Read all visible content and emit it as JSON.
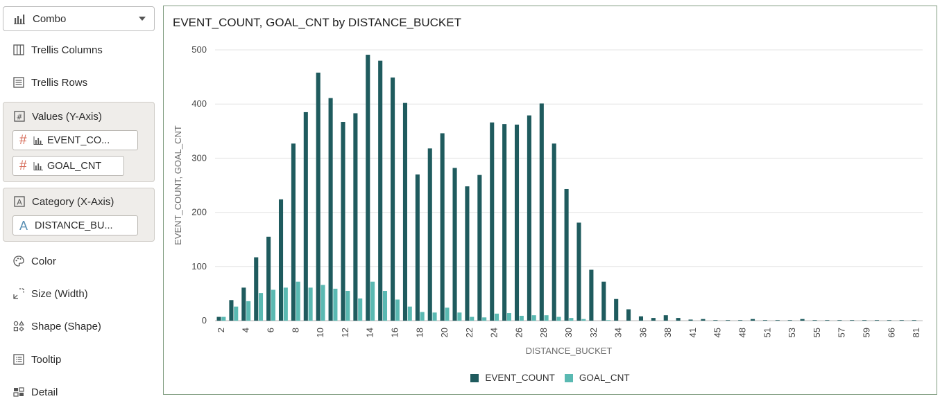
{
  "panel": {
    "chart_type": {
      "label": "Combo",
      "icon": "combo-chart-icon"
    },
    "trellis_columns": {
      "label": "Trellis Columns",
      "icon": "trellis-columns-icon"
    },
    "trellis_rows": {
      "label": "Trellis Rows",
      "icon": "trellis-rows-icon"
    },
    "values_group": {
      "label": "Values (Y-Axis)",
      "icon": "values-axis-icon",
      "items": [
        {
          "label": "EVENT_CO...",
          "type_icon": "number-icon",
          "viz_icon": "bar-chart-icon"
        },
        {
          "label": "GOAL_CNT",
          "type_icon": "number-icon",
          "viz_icon": "bar-chart-icon"
        }
      ]
    },
    "category_group": {
      "label": "Category (X-Axis)",
      "icon": "category-axis-icon",
      "items": [
        {
          "label": "DISTANCE_BU...",
          "type_icon": "attribute-icon"
        }
      ]
    },
    "color": {
      "label": "Color",
      "icon": "palette-icon"
    },
    "size": {
      "label": "Size (Width)",
      "icon": "size-icon"
    },
    "shape": {
      "label": "Shape (Shape)",
      "icon": "shape-icon"
    },
    "tooltip": {
      "label": "Tooltip",
      "icon": "tooltip-icon"
    },
    "detail": {
      "label": "Detail",
      "icon": "detail-icon"
    }
  },
  "colors": {
    "event_count": "#1f5b5e",
    "goal_cnt": "#5ab9b2",
    "grid": "#e4e4e4",
    "border": "#7d9a7d"
  },
  "chart_data": {
    "type": "bar",
    "title": "EVENT_COUNT, GOAL_CNT by DISTANCE_BUCKET",
    "xlabel": "DISTANCE_BUCKET",
    "ylabel": "EVENT_COUNT, GOAL_CNT",
    "ylim": [
      0,
      500
    ],
    "yticks": [
      0,
      100,
      200,
      300,
      400,
      500
    ],
    "grid": true,
    "legend_position": "bottom",
    "categories": [
      "2",
      "3",
      "4",
      "5",
      "6",
      "7",
      "8",
      "9",
      "10",
      "11",
      "12",
      "13",
      "14",
      "15",
      "16",
      "17",
      "18",
      "19",
      "20",
      "21",
      "22",
      "23",
      "24",
      "25",
      "26",
      "27",
      "28",
      "29",
      "30",
      "31",
      "32",
      "33",
      "34",
      "35",
      "36",
      "37",
      "38",
      "39",
      "41",
      "42",
      "45",
      "47",
      "48",
      "49",
      "51",
      "52",
      "53",
      "54",
      "55",
      "56",
      "57",
      "58",
      "59",
      "60",
      "66",
      "69",
      "81"
    ],
    "x_tick_labels": [
      "2",
      "4",
      "6",
      "8",
      "10",
      "12",
      "14",
      "16",
      "18",
      "20",
      "22",
      "24",
      "26",
      "28",
      "30",
      "32",
      "34",
      "36",
      "38",
      "41",
      "45",
      "48",
      "51",
      "53",
      "55",
      "57",
      "59",
      "66",
      "81"
    ],
    "series": [
      {
        "name": "EVENT_COUNT",
        "values": [
          7,
          38,
          61,
          117,
          155,
          224,
          327,
          385,
          458,
          411,
          367,
          383,
          491,
          480,
          449,
          402,
          270,
          318,
          346,
          282,
          248,
          269,
          366,
          363,
          362,
          379,
          401,
          327,
          243,
          181,
          94,
          72,
          40,
          21,
          8,
          5,
          10,
          5,
          2,
          3,
          1,
          1,
          1,
          3,
          1,
          1,
          1,
          3,
          1,
          1,
          1,
          1,
          1,
          1,
          1,
          1,
          1
        ]
      },
      {
        "name": "GOAL_CNT",
        "values": [
          7,
          26,
          36,
          51,
          57,
          61,
          72,
          61,
          66,
          59,
          55,
          41,
          72,
          55,
          39,
          26,
          16,
          15,
          24,
          15,
          7,
          6,
          13,
          14,
          9,
          10,
          10,
          7,
          5,
          3,
          0,
          1,
          0,
          0,
          0,
          0,
          0,
          0,
          0,
          0,
          0,
          0,
          0,
          0,
          0,
          0,
          0,
          0,
          0,
          0,
          0,
          0,
          0,
          0,
          0,
          0,
          0
        ]
      }
    ]
  }
}
